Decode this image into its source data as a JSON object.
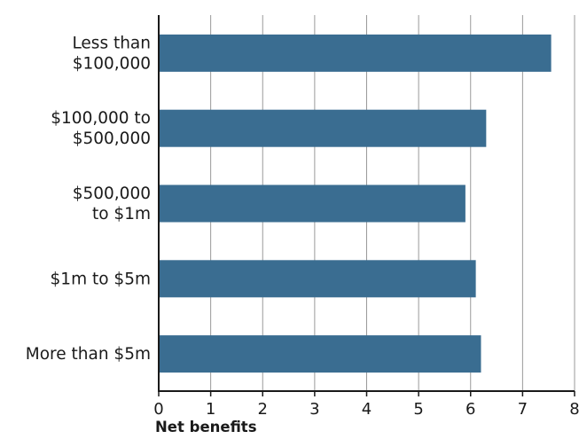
{
  "chart_data": {
    "type": "bar",
    "orientation": "horizontal",
    "categories": [
      [
        "Less than",
        "$100,000"
      ],
      [
        "$100,000 to",
        "$500,000"
      ],
      [
        "$500,000",
        "to $1m"
      ],
      [
        "$1m to $5m"
      ],
      [
        "More than $5m"
      ]
    ],
    "values": [
      7.55,
      6.3,
      5.9,
      6.1,
      6.2
    ],
    "xlabel": "Net benefits",
    "ylabel": "",
    "xlim": [
      0,
      8
    ],
    "xticks": [
      "0",
      "1",
      "2",
      "3",
      "4",
      "5",
      "6",
      "7",
      "8"
    ],
    "grid": "vertical",
    "bar_color": "#3a6d91",
    "grid_color": "#9a9a9a"
  }
}
